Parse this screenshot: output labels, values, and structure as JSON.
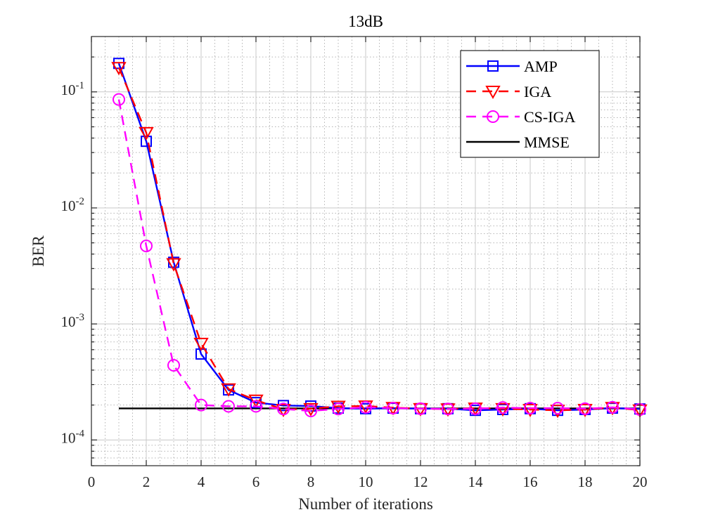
{
  "chart_data": {
    "type": "line",
    "title": "13dB",
    "xlabel": "Number of iterations",
    "ylabel": "BER",
    "xlim": [
      0,
      20
    ],
    "ylim": [
      6e-05,
      0.3
    ],
    "yscale": "log",
    "grid": true,
    "minor_grid": true,
    "legend_position": "top-right",
    "x_ticks": [
      0,
      2,
      4,
      6,
      8,
      10,
      12,
      14,
      16,
      18,
      20
    ],
    "x_tick_labels": [
      "0",
      "2",
      "4",
      "6",
      "8",
      "10",
      "12",
      "14",
      "16",
      "18",
      "20"
    ],
    "y_ticks": [
      0.0001,
      0.001,
      0.01,
      0.1
    ],
    "y_tick_bases": [
      "10",
      "10",
      "10",
      "10"
    ],
    "y_tick_exponents": [
      "-4",
      "-3",
      "-2",
      "-1"
    ],
    "x": [
      1,
      2,
      3,
      4,
      5,
      6,
      7,
      8,
      9,
      10,
      11,
      12,
      13,
      14,
      15,
      16,
      17,
      18,
      19,
      20
    ],
    "series": [
      {
        "name": "AMP",
        "color": "#0000ff",
        "line_style": "solid",
        "marker": "square",
        "values": [
          0.176,
          0.0375,
          0.0034,
          0.00055,
          0.00027,
          0.00021,
          0.000198,
          0.000196,
          0.000188,
          0.000186,
          0.000188,
          0.000186,
          0.000186,
          0.00018,
          0.000183,
          0.000186,
          0.00018,
          0.000183,
          0.000188,
          0.000185
        ]
      },
      {
        "name": "IGA",
        "color": "#ff0000",
        "line_style": "dashed",
        "marker": "triangle-down",
        "values": [
          0.162,
          0.0445,
          0.0033,
          0.00068,
          0.000275,
          0.00022,
          0.000183,
          0.000186,
          0.000195,
          0.000196,
          0.00019,
          0.000186,
          0.000185,
          0.000188,
          0.000186,
          0.000183,
          0.00018,
          0.000183,
          0.00019,
          0.000181
        ]
      },
      {
        "name": "CS-IGA",
        "color": "#ff00ff",
        "line_style": "dashed",
        "marker": "circle",
        "values": [
          0.086,
          0.0047,
          0.00044,
          0.0002,
          0.000195,
          0.000195,
          0.000185,
          0.000178,
          0.000185,
          0.000191,
          0.000188,
          0.000186,
          0.000185,
          0.000186,
          0.00019,
          0.000188,
          0.000188,
          0.000186,
          0.000191,
          0.000183
        ]
      },
      {
        "name": "MMSE",
        "color": "#000000",
        "line_style": "solid",
        "marker": "none",
        "values": [
          0.000187,
          0.000187,
          0.000187,
          0.000187,
          0.000187,
          0.000187,
          0.000187,
          0.000187,
          0.000187,
          0.000187,
          0.000187,
          0.000187,
          0.000187,
          0.000187,
          0.000187,
          0.000187,
          0.000187,
          0.000187,
          0.000187,
          0.000187
        ]
      }
    ]
  }
}
